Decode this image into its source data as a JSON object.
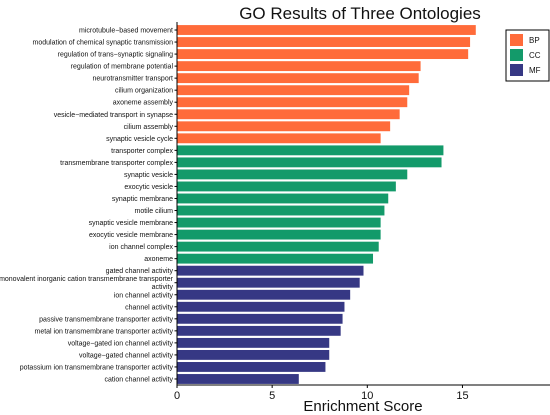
{
  "chart_data": {
    "type": "bar",
    "orientation": "horizontal",
    "title": "GO Results of Three Ontologies",
    "xlabel": "Enrichment Score",
    "ylabel": "",
    "xlim": [
      0,
      19.6
    ],
    "xticks": [
      0,
      5,
      10,
      15
    ],
    "grid": false,
    "legend_position": "top-right",
    "series": [
      {
        "name": "BP",
        "color": "#FF6B3A",
        "categories": [
          "microtubule−based movement",
          "modulation of chemical synaptic transmission",
          "regulation of trans−synaptic signaling",
          "regulation of membrane potential",
          "neurotransmitter transport",
          "cilium organization",
          "axoneme assembly",
          "vesicle−mediated transport in synapse",
          "cilium assembly",
          "synaptic vesicle cycle"
        ],
        "values": [
          15.7,
          15.4,
          15.3,
          12.8,
          12.7,
          12.2,
          12.1,
          11.7,
          11.2,
          10.7
        ]
      },
      {
        "name": "CC",
        "color": "#139A6A",
        "categories": [
          "transporter complex",
          "transmembrane transporter complex",
          "synaptic vesicle",
          "exocytic vesicle",
          "synaptic membrane",
          "motile cilium",
          "synaptic vesicle membrane",
          "exocytic vesicle membrane",
          "ion channel complex",
          "axoneme"
        ],
        "values": [
          14.0,
          13.9,
          12.1,
          11.5,
          11.1,
          10.9,
          10.7,
          10.7,
          10.6,
          10.3
        ]
      },
      {
        "name": "MF",
        "color": "#363884",
        "categories": [
          "gated channel activity",
          "monovalent inorganic cation transmembrane transporter activity",
          "ion channel activity",
          "channel activity",
          "passive transmembrane transporter activity",
          "metal ion transmembrane transporter activity",
          "voltage−gated ion channel activity",
          "voltage−gated channel activity",
          "potassium ion transmembrane transporter activity",
          "cation channel activity"
        ],
        "values": [
          9.8,
          9.6,
          9.1,
          8.8,
          8.7,
          8.6,
          8.0,
          8.0,
          7.8,
          6.4
        ]
      }
    ]
  }
}
